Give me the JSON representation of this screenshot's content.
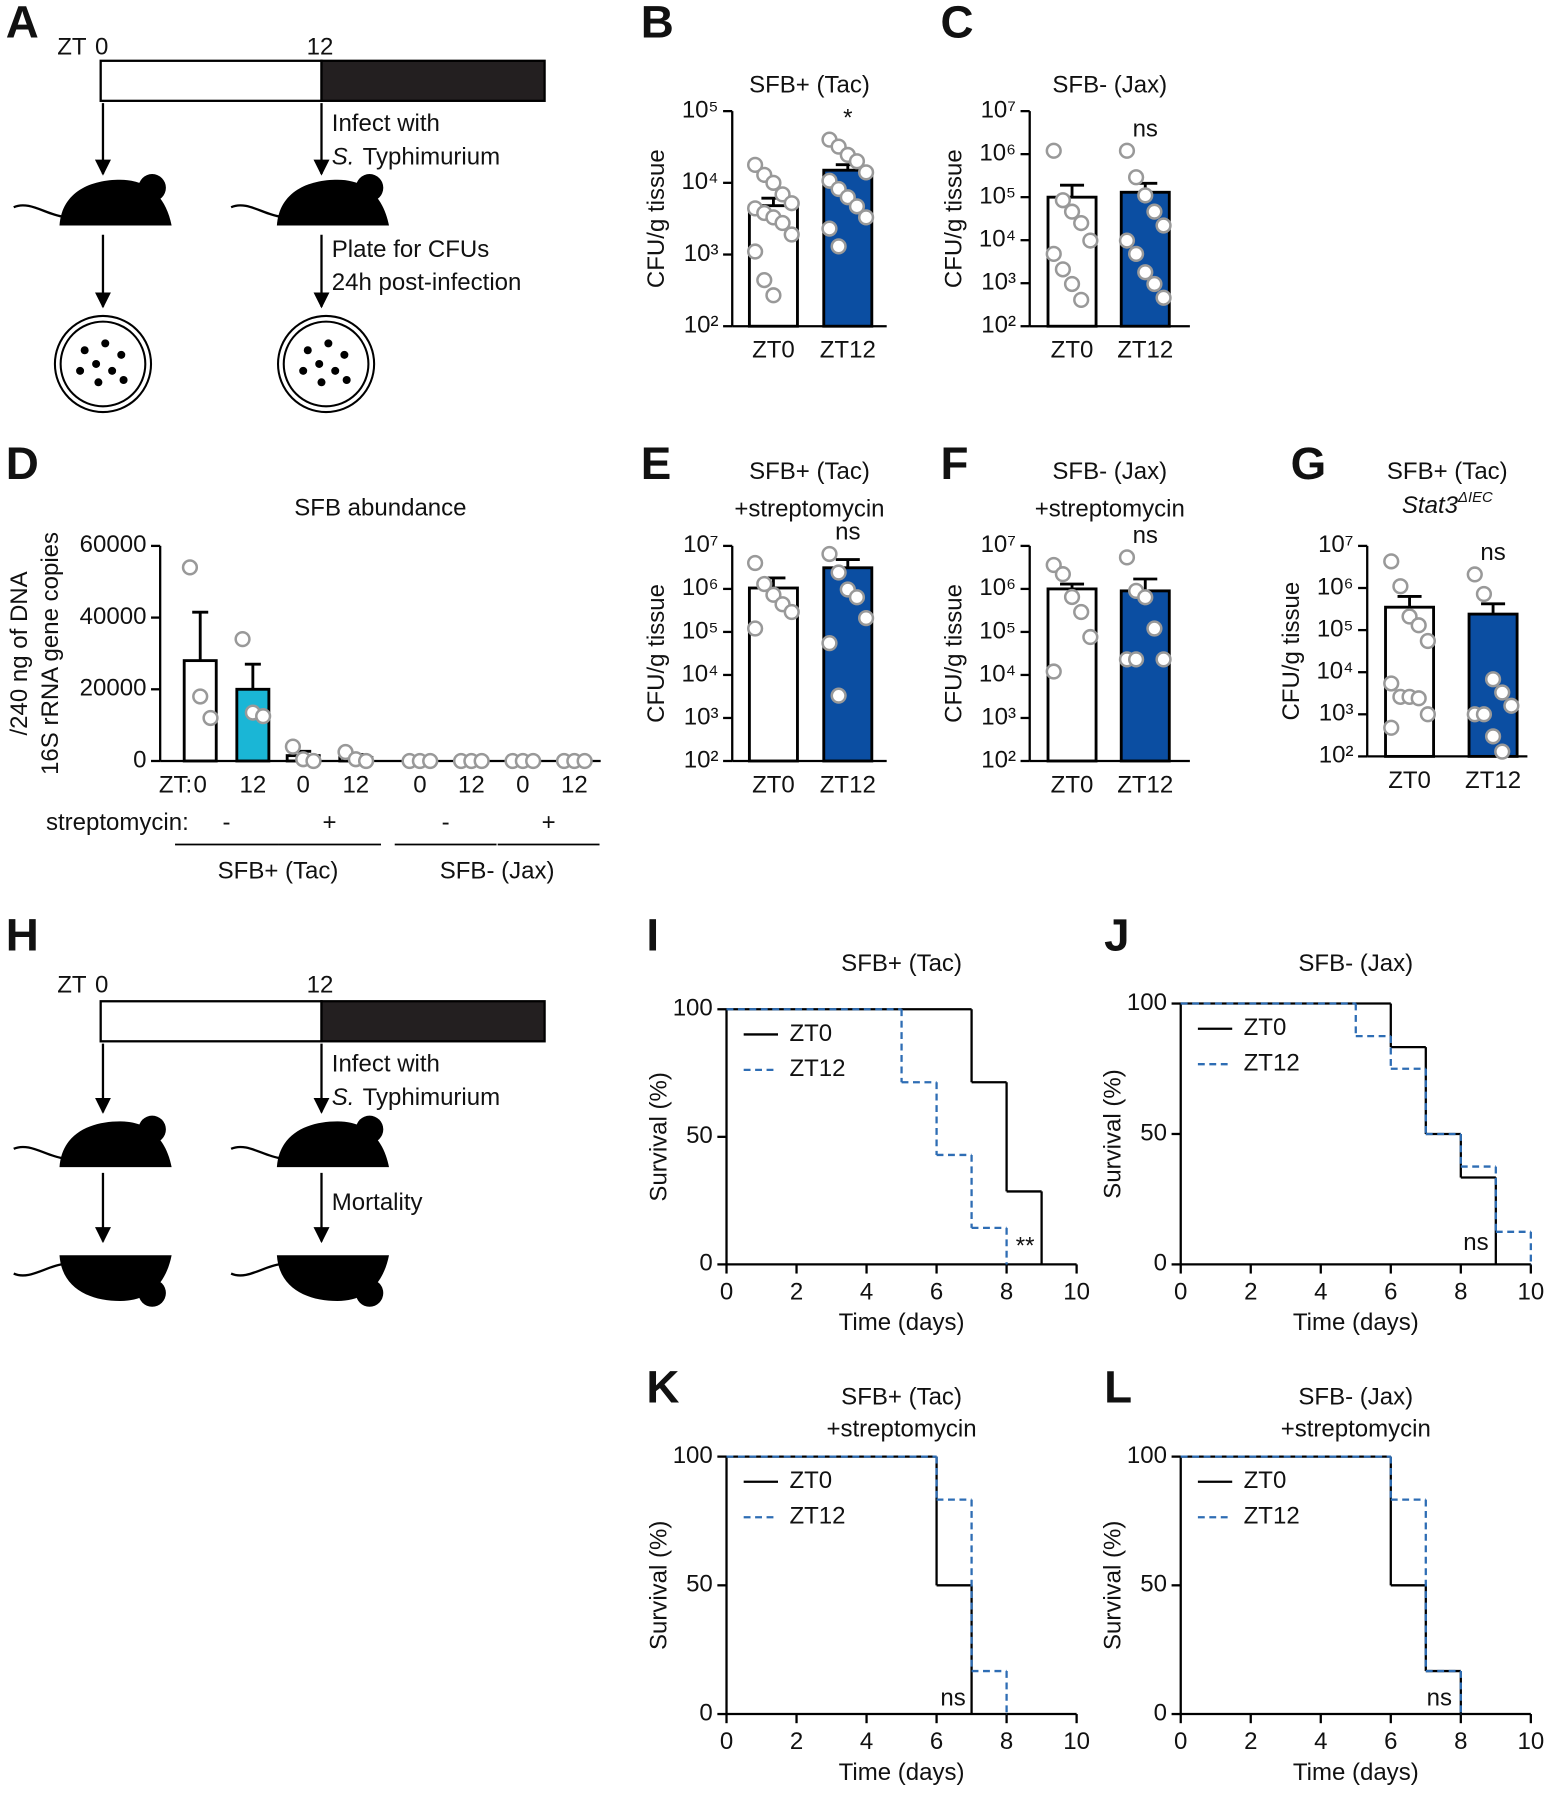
{
  "diagrams": {
    "A": {
      "panel": "A",
      "zt": "ZT",
      "t0": "0",
      "t12": "12",
      "infect": "Infect with",
      "species_italic": "S.",
      "species": "Typhimurium",
      "plate": "Plate for CFUs",
      "post": "24h post-infection"
    },
    "H": {
      "panel": "H",
      "zt": "ZT",
      "t0": "0",
      "t12": "12",
      "infect": "Infect with",
      "species_italic": "S.",
      "species": "Typhimurium",
      "outcome": "Mortality"
    }
  },
  "chart_data": [
    {
      "panel": "B",
      "type": "bar",
      "title": "SFB+ (Tac)",
      "ylabel": "CFU/g tissue",
      "categories": [
        "ZT0",
        "ZT12"
      ],
      "values": [
        4800,
        15000
      ],
      "errors": [
        1300,
        2900
      ],
      "colors": [
        "#ffffff",
        "#0b4ea2"
      ],
      "points": [
        [
          17800,
          12900,
          10000,
          6900,
          5200,
          4400,
          3800,
          3300,
          2750,
          1900,
          1100,
          440,
          270
        ],
        [
          40000,
          32000,
          24500,
          20000,
          14000,
          10700,
          8200,
          6300,
          4700,
          3300,
          2300,
          1300
        ]
      ],
      "log_y": true,
      "ylim": [
        100,
        100000
      ],
      "yticks": [
        {
          "value": 100,
          "label": "10²"
        },
        {
          "value": 1000,
          "label": "10³"
        },
        {
          "value": 10000,
          "label": "10⁴"
        },
        {
          "value": 100000,
          "label": "10⁵"
        }
      ],
      "annotation": "*"
    },
    {
      "panel": "C",
      "type": "bar",
      "title": "SFB- (Jax)",
      "ylabel": "CFU/g tissue",
      "categories": [
        "ZT0",
        "ZT12"
      ],
      "values": [
        100000,
        130000
      ],
      "errors": [
        90000,
        80000
      ],
      "colors": [
        "#ffffff",
        "#0b4ea2"
      ],
      "points": [
        [
          1200000,
          85000,
          46000,
          25000,
          9800,
          4800,
          2100,
          960,
          410
        ],
        [
          1200000,
          290000,
          110000,
          46000,
          22000,
          9800,
          4800,
          1800,
          960,
          460
        ]
      ],
      "log_y": true,
      "ylim": [
        100,
        10000000
      ],
      "yticks": [
        {
          "value": 100,
          "label": "10²"
        },
        {
          "value": 1000,
          "label": "10³"
        },
        {
          "value": 10000,
          "label": "10⁴"
        },
        {
          "value": 100000,
          "label": "10⁵"
        },
        {
          "value": 1000000,
          "label": "10⁶"
        },
        {
          "value": 10000000,
          "label": "10⁷"
        }
      ],
      "annotation": "ns"
    },
    {
      "panel": "D",
      "type": "bar",
      "title": "SFB abundance",
      "ylabel": [
        "16S rRNA gene copies",
        "/240 ng of DNA"
      ],
      "categories": [
        "0",
        "12",
        "0",
        "12",
        "0",
        "12",
        "0",
        "12"
      ],
      "x_label_prefix": "ZT:",
      "values": [
        28000,
        20000,
        1500,
        1000,
        0,
        0,
        0,
        0
      ],
      "errors": [
        13500,
        7000,
        1200,
        800,
        0,
        0,
        0,
        0
      ],
      "colors": [
        "#ffffff",
        "#1ab6d6",
        "#ffffff",
        "#ffffff",
        "#ffffff",
        "#ffffff",
        "#ffffff",
        "#ffffff"
      ],
      "points": [
        [
          54000,
          18000,
          12000
        ],
        [
          34000,
          13500,
          12500
        ],
        [
          4000,
          500,
          0
        ],
        [
          2500,
          500,
          0
        ],
        [
          0,
          0,
          0
        ],
        [
          0,
          0,
          0
        ],
        [
          0,
          0,
          0
        ],
        [
          0,
          0,
          0
        ]
      ],
      "row_label": "streptomycin:",
      "treatment_labels": [
        "-",
        "+",
        "-",
        "+"
      ],
      "group_labels": [
        "SFB+ (Tac)",
        "SFB- (Jax)"
      ],
      "log_y": false,
      "ylim": [
        0,
        60000
      ],
      "yticks": [
        0,
        20000,
        40000,
        60000
      ]
    },
    {
      "panel": "E",
      "type": "bar",
      "title": "SFB+ (Tac)",
      "subtitle": "+streptomycin",
      "ylabel": "CFU/g tissue",
      "categories": [
        "ZT0",
        "ZT12"
      ],
      "values": [
        1050000,
        3100000
      ],
      "errors": [
        750000,
        1700000
      ],
      "colors": [
        "#ffffff",
        "#0b4ea2"
      ],
      "points": [
        [
          4000000,
          1300000,
          730000,
          440000,
          290000,
          120000
        ],
        [
          6500000,
          2400000,
          970000,
          640000,
          210000,
          55000,
          3300
        ]
      ],
      "log_y": true,
      "ylim": [
        100,
        10000000
      ],
      "yticks": [
        {
          "value": 100,
          "label": "10²"
        },
        {
          "value": 1000,
          "label": "10³"
        },
        {
          "value": 10000,
          "label": "10⁴"
        },
        {
          "value": 100000,
          "label": "10⁵"
        },
        {
          "value": 1000000,
          "label": "10⁶"
        },
        {
          "value": 10000000,
          "label": "10⁷"
        }
      ],
      "annotation": "ns"
    },
    {
      "panel": "F",
      "type": "bar",
      "title": "SFB- (Jax)",
      "subtitle": "+streptomycin",
      "ylabel": "CFU/g tissue",
      "categories": [
        "ZT0",
        "ZT12"
      ],
      "values": [
        1000000,
        900000
      ],
      "errors": [
        300000,
        800000
      ],
      "colors": [
        "#ffffff",
        "#0b4ea2"
      ],
      "points": [
        [
          3600000,
          2200000,
          650000,
          290000,
          76000,
          12000
        ],
        [
          5400000,
          900000,
          640000,
          120000,
          23000,
          23000,
          23000
        ]
      ],
      "log_y": true,
      "ylim": [
        100,
        10000000
      ],
      "yticks": [
        {
          "value": 100,
          "label": "10²"
        },
        {
          "value": 1000,
          "label": "10³"
        },
        {
          "value": 10000,
          "label": "10⁴"
        },
        {
          "value": 100000,
          "label": "10⁵"
        },
        {
          "value": 1000000,
          "label": "10⁶"
        },
        {
          "value": 10000000,
          "label": "10⁷"
        }
      ],
      "annotation": "ns"
    },
    {
      "panel": "G",
      "type": "bar",
      "title": "SFB+ (Tac)",
      "subtitle": "Stat3",
      "subtitle_sup": "ΔIEC",
      "ylabel": "CFU/g tissue",
      "categories": [
        "ZT0",
        "ZT12"
      ],
      "values": [
        350000,
        240000
      ],
      "errors": [
        280000,
        180000
      ],
      "colors": [
        "#ffffff",
        "#0b4ea2"
      ],
      "points": [
        [
          4300000,
          1100000,
          210000,
          130000,
          55000,
          5400,
          2600,
          2600,
          2400,
          1000,
          480
        ],
        [
          2100000,
          720000,
          6800,
          3300,
          1600,
          1000,
          1000,
          300,
          130
        ]
      ],
      "log_y": true,
      "ylim": [
        100,
        10000000
      ],
      "yticks": [
        {
          "value": 100,
          "label": "10²"
        },
        {
          "value": 1000,
          "label": "10³"
        },
        {
          "value": 10000,
          "label": "10⁴"
        },
        {
          "value": 100000,
          "label": "10⁵"
        },
        {
          "value": 1000000,
          "label": "10⁶"
        },
        {
          "value": 10000000,
          "label": "10⁷"
        }
      ],
      "annotation": "ns"
    },
    {
      "panel": "I",
      "type": "step",
      "title": "SFB+ (Tac)",
      "xlabel": "Time (days)",
      "ylabel": "Survival (%)",
      "xlim": [
        0,
        10
      ],
      "xticks": [
        0,
        2,
        4,
        6,
        8,
        10
      ],
      "ylim": [
        0,
        100
      ],
      "yticks": [
        0,
        50,
        100
      ],
      "legend": "upper left",
      "annotation": "**",
      "series": [
        {
          "name": "ZT0",
          "color": "#000000",
          "dashed": false,
          "x": [
            0,
            7,
            8,
            9
          ],
          "values": [
            100,
            71.4,
            28.6,
            0
          ]
        },
        {
          "name": "ZT12",
          "color": "#2e6db4",
          "dashed": true,
          "x": [
            0,
            5,
            6,
            7,
            8
          ],
          "values": [
            100,
            71.4,
            42.9,
            14.3,
            0
          ]
        }
      ]
    },
    {
      "panel": "J",
      "type": "step",
      "title": "SFB- (Jax)",
      "xlabel": "Time (days)",
      "ylabel": "Survival (%)",
      "xlim": [
        0,
        10
      ],
      "xticks": [
        0,
        2,
        4,
        6,
        8,
        10
      ],
      "ylim": [
        0,
        100
      ],
      "yticks": [
        0,
        50,
        100
      ],
      "legend": "upper left",
      "annotation": "ns",
      "series": [
        {
          "name": "ZT0",
          "color": "#000000",
          "dashed": false,
          "x": [
            0,
            6,
            7,
            8,
            9
          ],
          "values": [
            100,
            83.3,
            50,
            33.3,
            0
          ]
        },
        {
          "name": "ZT12",
          "color": "#2e6db4",
          "dashed": true,
          "x": [
            0,
            5,
            6,
            7,
            8,
            9,
            10
          ],
          "values": [
            100,
            87.5,
            75,
            50,
            37.5,
            12.5,
            0
          ]
        }
      ]
    },
    {
      "panel": "K",
      "type": "step",
      "title": "SFB+ (Tac)",
      "subtitle": "+streptomycin",
      "xlabel": "Time (days)",
      "ylabel": "Survival (%)",
      "xlim": [
        0,
        10
      ],
      "xticks": [
        0,
        2,
        4,
        6,
        8,
        10
      ],
      "ylim": [
        0,
        100
      ],
      "yticks": [
        0,
        50,
        100
      ],
      "legend": "upper left",
      "annotation": "ns",
      "series": [
        {
          "name": "ZT0",
          "color": "#000000",
          "dashed": false,
          "x": [
            0,
            6,
            7
          ],
          "values": [
            100,
            50,
            0
          ]
        },
        {
          "name": "ZT12",
          "color": "#2e6db4",
          "dashed": true,
          "x": [
            0,
            6,
            7,
            8
          ],
          "values": [
            100,
            83.3,
            16.7,
            0
          ]
        }
      ]
    },
    {
      "panel": "L",
      "type": "step",
      "title": "SFB- (Jax)",
      "subtitle": "+streptomycin",
      "xlabel": "Time (days)",
      "ylabel": "Survival (%)",
      "xlim": [
        0,
        10
      ],
      "xticks": [
        0,
        2,
        4,
        6,
        8,
        10
      ],
      "ylim": [
        0,
        100
      ],
      "yticks": [
        0,
        50,
        100
      ],
      "legend": "upper left",
      "annotation": "ns",
      "series": [
        {
          "name": "ZT0",
          "color": "#000000",
          "dashed": false,
          "x": [
            0,
            6,
            7,
            8
          ],
          "values": [
            100,
            50,
            16.7,
            0
          ]
        },
        {
          "name": "ZT12",
          "color": "#2e6db4",
          "dashed": true,
          "x": [
            0,
            6,
            7,
            8
          ],
          "values": [
            100,
            83.3,
            16.7,
            0
          ]
        }
      ]
    }
  ]
}
